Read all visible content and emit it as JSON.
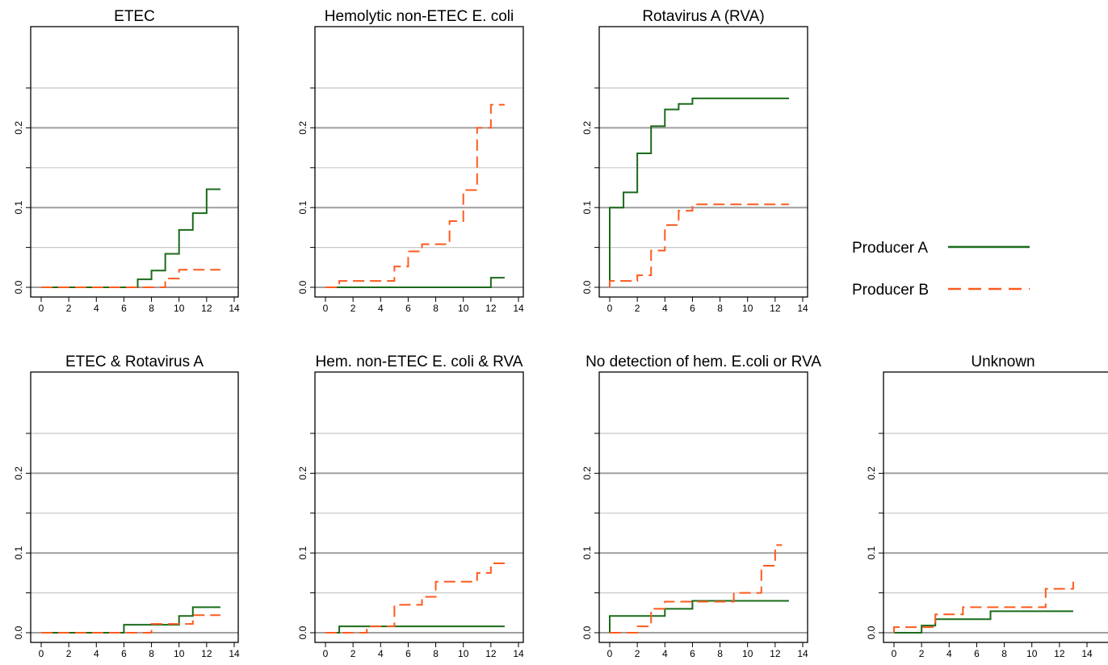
{
  "legend": {
    "entries": [
      {
        "label": "Producer A",
        "color": "#1a6b1a",
        "style": "solid"
      },
      {
        "label": "Producer B",
        "color": "#ff5a1f",
        "style": "dashed"
      }
    ]
  },
  "colors": {
    "producer_a": "#1a6b1a",
    "producer_b": "#ff5a1f",
    "major_grid": "#9e9e9e",
    "minor_grid": "#c8c8c8"
  },
  "chart_data": [
    {
      "type": "line",
      "step": true,
      "title": "ETEC",
      "xlim": [
        0,
        14
      ],
      "ylim": [
        0,
        0.25
      ],
      "xticks": [
        0,
        2,
        4,
        6,
        8,
        10,
        12,
        14
      ],
      "yticks": [
        0.0,
        0.1,
        0.2
      ],
      "series": [
        {
          "name": "Producer A",
          "x": [
            0,
            7,
            8,
            9,
            10,
            11,
            12,
            13
          ],
          "y": [
            0,
            0.01,
            0.021,
            0.042,
            0.072,
            0.093,
            0.123,
            0.123
          ]
        },
        {
          "name": "Producer B",
          "x": [
            0,
            9,
            10,
            13
          ],
          "y": [
            0,
            0.011,
            0.022,
            0.022
          ]
        }
      ]
    },
    {
      "type": "line",
      "step": true,
      "title": "Hemolytic non-ETEC E. coli",
      "xlim": [
        0,
        14
      ],
      "ylim": [
        0,
        0.25
      ],
      "xticks": [
        0,
        2,
        4,
        6,
        8,
        10,
        12,
        14
      ],
      "yticks": [
        0.0,
        0.1,
        0.2
      ],
      "series": [
        {
          "name": "Producer A",
          "x": [
            0,
            12,
            13
          ],
          "y": [
            0,
            0.012,
            0.012
          ]
        },
        {
          "name": "Producer B",
          "x": [
            0,
            1,
            5,
            6,
            7,
            9,
            10,
            11,
            12,
            13
          ],
          "y": [
            0,
            0.008,
            0.026,
            0.045,
            0.054,
            0.083,
            0.122,
            0.2,
            0.229,
            0.229
          ]
        }
      ]
    },
    {
      "type": "line",
      "step": true,
      "title": "Rotavirus A (RVA)",
      "xlim": [
        0,
        14
      ],
      "ylim": [
        0,
        0.25
      ],
      "xticks": [
        0,
        2,
        4,
        6,
        8,
        10,
        12,
        14
      ],
      "yticks": [
        0.0,
        0.1,
        0.2
      ],
      "series": [
        {
          "name": "Producer A",
          "x": [
            0,
            1,
            2,
            3,
            4,
            5,
            6,
            13
          ],
          "y": [
            0.1,
            0.119,
            0.168,
            0.202,
            0.223,
            0.23,
            0.237,
            0.237
          ]
        },
        {
          "name": "Producer B",
          "x": [
            0,
            2,
            3,
            4,
            5,
            6,
            13
          ],
          "y": [
            0.008,
            0.015,
            0.046,
            0.078,
            0.096,
            0.104,
            0.104
          ]
        }
      ]
    },
    {
      "type": "line",
      "step": true,
      "title": "ETEC & Rotavirus A",
      "xlim": [
        0,
        14
      ],
      "ylim": [
        0,
        0.25
      ],
      "xticks": [
        0,
        2,
        4,
        6,
        8,
        10,
        12,
        14
      ],
      "yticks": [
        0.0,
        0.1,
        0.2
      ],
      "series": [
        {
          "name": "Producer A",
          "x": [
            0,
            6,
            10,
            11,
            13
          ],
          "y": [
            0,
            0.01,
            0.021,
            0.032,
            0.032
          ]
        },
        {
          "name": "Producer B",
          "x": [
            0,
            8,
            11,
            13
          ],
          "y": [
            0,
            0.011,
            0.022,
            0.022
          ]
        }
      ]
    },
    {
      "type": "line",
      "step": true,
      "title": "Hem. non-ETEC E. coli & RVA",
      "xlim": [
        0,
        14
      ],
      "ylim": [
        0,
        0.25
      ],
      "xticks": [
        0,
        2,
        4,
        6,
        8,
        10,
        12,
        14
      ],
      "yticks": [
        0.0,
        0.1,
        0.2
      ],
      "series": [
        {
          "name": "Producer A",
          "x": [
            0,
            1,
            13
          ],
          "y": [
            0,
            0.008,
            0.008
          ]
        },
        {
          "name": "Producer B",
          "x": [
            0,
            3,
            5,
            7,
            8,
            11,
            12,
            13
          ],
          "y": [
            0,
            0.008,
            0.035,
            0.045,
            0.064,
            0.075,
            0.087,
            0.087
          ]
        }
      ]
    },
    {
      "type": "line",
      "step": true,
      "title": "No detection of hem. E.coli or RVA",
      "xlim": [
        0,
        14
      ],
      "ylim": [
        0,
        0.25
      ],
      "xticks": [
        0,
        2,
        4,
        6,
        8,
        10,
        12,
        14
      ],
      "yticks": [
        0.0,
        0.1,
        0.2
      ],
      "series": [
        {
          "name": "Producer A",
          "x": [
            0,
            4,
            6,
            13
          ],
          "y": [
            0.021,
            0.03,
            0.04,
            0.04
          ]
        },
        {
          "name": "Producer B",
          "x": [
            0,
            2,
            3,
            4,
            9,
            11,
            12,
            12.5
          ],
          "y": [
            0,
            0.008,
            0.03,
            0.039,
            0.05,
            0.084,
            0.11,
            0.11
          ]
        }
      ]
    },
    {
      "type": "line",
      "step": true,
      "title": "Unknown",
      "xlim": [
        0,
        14
      ],
      "ylim": [
        0,
        0.25
      ],
      "xticks": [
        0,
        2,
        4,
        6,
        8,
        10,
        12,
        14
      ],
      "yticks": [
        0.0,
        0.1,
        0.2
      ],
      "series": [
        {
          "name": "Producer A",
          "x": [
            0,
            2,
            3,
            7,
            13
          ],
          "y": [
            0,
            0.009,
            0.017,
            0.027,
            0.027
          ]
        },
        {
          "name": "Producer B",
          "x": [
            0,
            3,
            5,
            11,
            13
          ],
          "y": [
            0.007,
            0.023,
            0.032,
            0.055,
            0.064
          ]
        }
      ]
    }
  ]
}
